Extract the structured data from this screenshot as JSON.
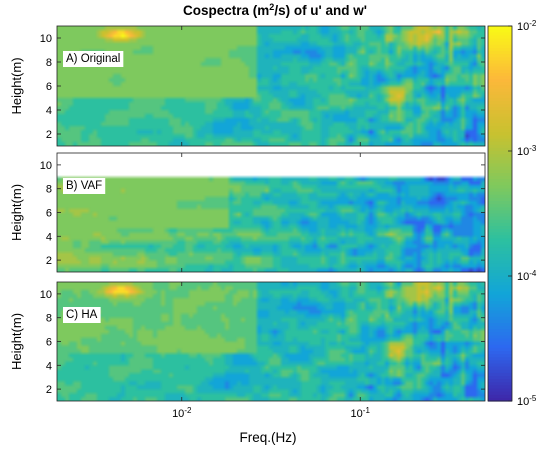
{
  "chart_data": {
    "type": "heatmap",
    "title_parts": [
      "Cospectra (m",
      "2",
      "/s) of u' and w'"
    ],
    "xlabel": "Freq.(Hz)",
    "ylabel": "Height(m)",
    "x_scale": "log",
    "x_range_hz": [
      0.002,
      0.5
    ],
    "x_ticks": [
      {
        "value": 0.01,
        "base": "10",
        "exp": "-2"
      },
      {
        "value": 0.1,
        "base": "10",
        "exp": "-1"
      }
    ],
    "y_range_m": [
      1,
      11
    ],
    "y_ticks": [
      2,
      4,
      6,
      8,
      10
    ],
    "color_scale": "log",
    "colorbar": {
      "range": [
        1e-05,
        0.01
      ],
      "ticks": [
        {
          "value": 0.01,
          "base": "10",
          "exp": "-2"
        },
        {
          "value": 0.001,
          "base": "10",
          "exp": "-3"
        },
        {
          "value": 0.0001,
          "base": "10",
          "exp": "-4"
        },
        {
          "value": 1e-05,
          "base": "10",
          "exp": "-5"
        }
      ],
      "colors": [
        "#3e26a8",
        "#2d68f0",
        "#12a5d8",
        "#2cc0a0",
        "#7ec95e",
        "#c9c12f",
        "#fcb83a",
        "#f9fb15"
      ]
    },
    "panels": [
      {
        "label": "A) Original",
        "method": "original"
      },
      {
        "label": "B) VAF",
        "method": "vaf"
      },
      {
        "label": "C) HA",
        "method": "ha"
      }
    ]
  }
}
